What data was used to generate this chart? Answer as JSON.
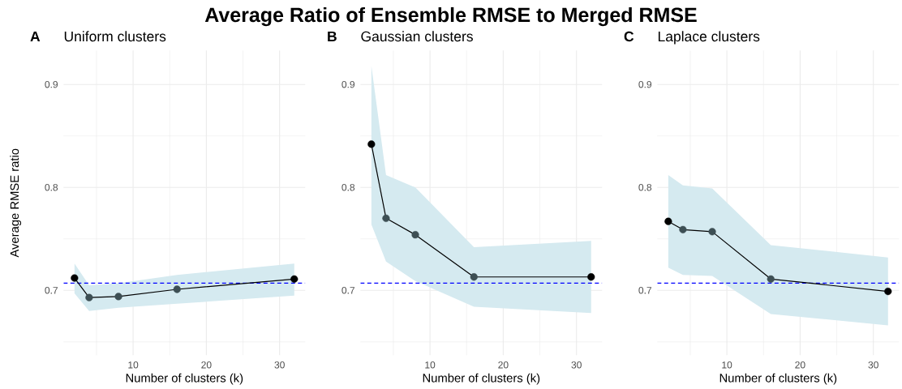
{
  "chart_data": [
    {
      "type": "line",
      "title": "Average Ratio of Ensemble RMSE to Merged RMSE",
      "subtitle": "Uniform clusters",
      "annotations": [
        "A"
      ],
      "xlabel": "Number of clusters (k)",
      "ylabel": "Average RMSE ratio",
      "x": [
        2,
        4,
        8,
        16,
        32
      ],
      "series": [
        {
          "color": "#000000",
          "colors": [
            "#000000",
            "#3d4f54",
            "#3d4f54",
            "#3d4f54",
            "#000000"
          ],
          "values": [
            0.712,
            0.693,
            0.694,
            0.701,
            0.711
          ],
          "lower": [
            0.697,
            0.68,
            0.683,
            0.687,
            0.695
          ],
          "upper": [
            0.726,
            0.705,
            0.707,
            0.715,
            0.726
          ]
        }
      ],
      "xlim": [
        0.5,
        33.5
      ],
      "ylim": [
        0.637,
        0.933
      ],
      "xticks": [
        {
          "value": 5,
          "label": null
        },
        10,
        {
          "value": 15,
          "label": null
        },
        20,
        {
          "value": 25,
          "label": null
        },
        30
      ],
      "yticks": [
        {
          "value": 0.65,
          "label": null
        },
        0.7,
        {
          "value": 0.75,
          "label": null
        },
        0.8,
        {
          "value": 0.85,
          "label": null
        },
        0.9
      ],
      "ref_lines": [
        {
          "axis": "y",
          "value": 0.707,
          "color": "#0000ff",
          "line_style": "dashed"
        }
      ],
      "grid": true,
      "marker": "circle",
      "line_style": "solid"
    },
    {
      "type": "line",
      "subtitle": "Gaussian clusters",
      "annotations": [
        "B"
      ],
      "xlabel": "Number of clusters (k)",
      "x": [
        2,
        4,
        8,
        16,
        32
      ],
      "series": [
        {
          "color": "#000000",
          "colors": [
            "#000000",
            "#3d4f54",
            "#3d4f54",
            "#3d4f54",
            "#000000"
          ],
          "values": [
            0.842,
            0.77,
            0.754,
            0.713,
            0.713
          ],
          "lower": [
            0.764,
            0.728,
            0.709,
            0.684,
            0.678
          ],
          "upper": [
            0.918,
            0.812,
            0.8,
            0.742,
            0.748
          ]
        }
      ],
      "xlim": [
        0.5,
        33.5
      ],
      "ylim": [
        0.637,
        0.933
      ],
      "xticks": [
        {
          "value": 5,
          "label": null
        },
        10,
        {
          "value": 15,
          "label": null
        },
        20,
        {
          "value": 25,
          "label": null
        },
        30
      ],
      "yticks": [
        {
          "value": 0.65,
          "label": null
        },
        0.7,
        {
          "value": 0.75,
          "label": null
        },
        0.8,
        {
          "value": 0.85,
          "label": null
        },
        0.9
      ],
      "ref_lines": [
        {
          "axis": "y",
          "value": 0.707,
          "color": "#0000ff",
          "line_style": "dashed"
        }
      ],
      "grid": true,
      "marker": "circle",
      "line_style": "solid"
    },
    {
      "type": "line",
      "subtitle": "Laplace clusters",
      "annotations": [
        "C"
      ],
      "xlabel": "Number of clusters (k)",
      "x": [
        2,
        4,
        8,
        16,
        32
      ],
      "series": [
        {
          "color": "#000000",
          "colors": [
            "#000000",
            "#3d4f54",
            "#3d4f54",
            "#3d4f54",
            "#000000"
          ],
          "values": [
            0.767,
            0.759,
            0.757,
            0.711,
            0.699
          ],
          "lower": [
            0.722,
            0.715,
            0.714,
            0.677,
            0.666
          ],
          "upper": [
            0.812,
            0.802,
            0.799,
            0.744,
            0.732
          ]
        }
      ],
      "xlim": [
        0.5,
        33.5
      ],
      "ylim": [
        0.637,
        0.933
      ],
      "xticks": [
        {
          "value": 5,
          "label": null
        },
        10,
        {
          "value": 15,
          "label": null
        },
        20,
        {
          "value": 25,
          "label": null
        },
        30
      ],
      "yticks": [
        {
          "value": 0.65,
          "label": null
        },
        0.7,
        {
          "value": 0.75,
          "label": null
        },
        0.8,
        {
          "value": 0.85,
          "label": null
        },
        0.9
      ],
      "ref_lines": [
        {
          "axis": "y",
          "value": 0.707,
          "color": "#0000ff",
          "line_style": "dashed"
        }
      ],
      "grid": true,
      "marker": "circle",
      "line_style": "solid"
    }
  ]
}
